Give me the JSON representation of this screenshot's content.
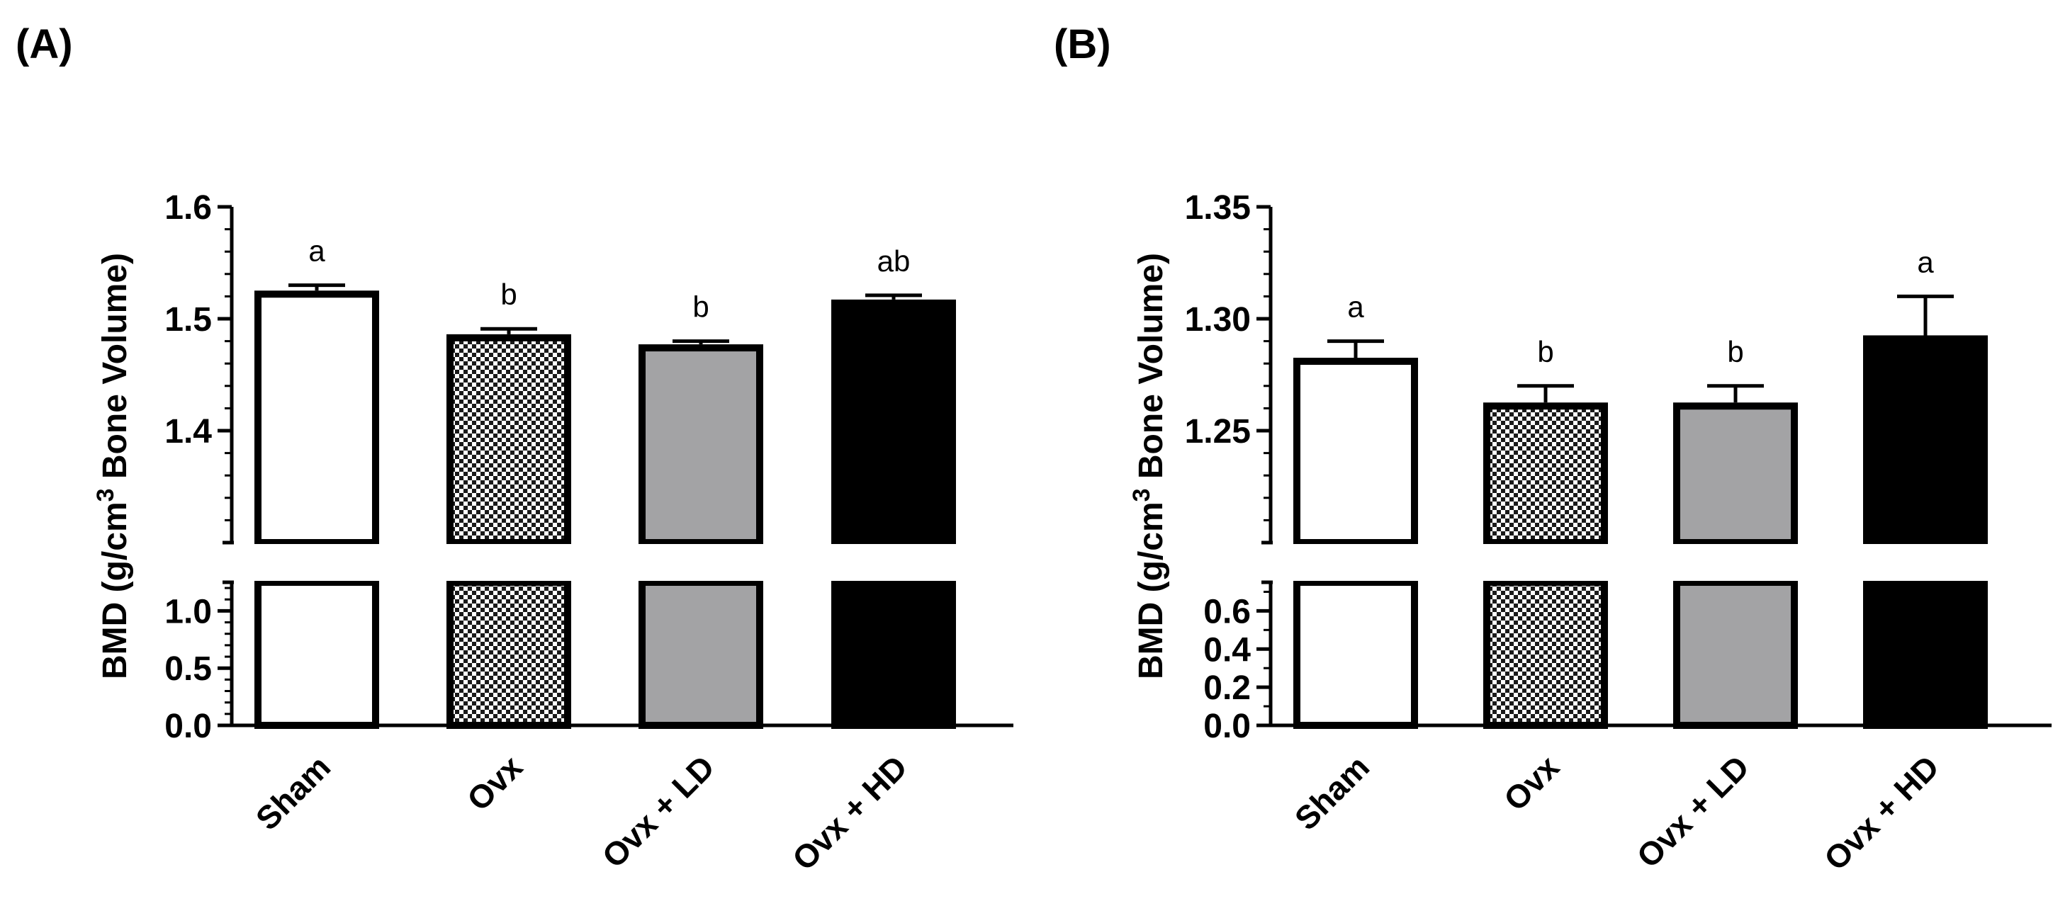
{
  "chart_data": [
    {
      "panel": "(A)",
      "type": "bar",
      "ylabel": "BMD (g/cm3 Bone Volume)",
      "categories": [
        "Sham",
        "Ovx",
        "Ovx + LD",
        "Ovx + HD"
      ],
      "values": [
        1.522,
        1.483,
        1.474,
        1.514
      ],
      "errors": [
        0.008,
        0.008,
        0.006,
        0.007
      ],
      "significance": [
        "a",
        "b",
        "b",
        "ab"
      ],
      "bar_fills": [
        "white",
        "checkered",
        "gray",
        "black"
      ],
      "axis_break": true,
      "lower_segment": {
        "ylim": [
          0,
          1.25
        ],
        "ticks": [
          "0.0",
          "0.5",
          "1.0"
        ]
      },
      "upper_segment": {
        "ylim": [
          1.3,
          1.6
        ],
        "ticks": [
          "1.4",
          "1.5",
          "1.6"
        ]
      },
      "grid": false,
      "legend": "none"
    },
    {
      "panel": "(B)",
      "type": "bar",
      "ylabel": "BMD (g/cm3 Bone Volume)",
      "categories": [
        "Sham",
        "Ovx",
        "Ovx + LD",
        "Ovx + HD"
      ],
      "values": [
        1.281,
        1.261,
        1.261,
        1.291
      ],
      "errors": [
        0.009,
        0.009,
        0.009,
        0.019
      ],
      "significance": [
        "a",
        "b",
        "b",
        "a"
      ],
      "bar_fills": [
        "white",
        "checkered",
        "gray",
        "black"
      ],
      "axis_break": true,
      "lower_segment": {
        "ylim": [
          0,
          0.75
        ],
        "ticks": [
          "0.0",
          "0.2",
          "0.4",
          "0.6"
        ]
      },
      "upper_segment": {
        "ylim": [
          1.2,
          1.35
        ],
        "ticks": [
          "1.25",
          "1.30",
          "1.35"
        ]
      },
      "grid": false,
      "legend": "none"
    }
  ],
  "colors": {
    "bar_outline": "#000000",
    "gray_fill": "#a3a3a5",
    "black_fill": "#000000",
    "white_fill": "#ffffff"
  }
}
